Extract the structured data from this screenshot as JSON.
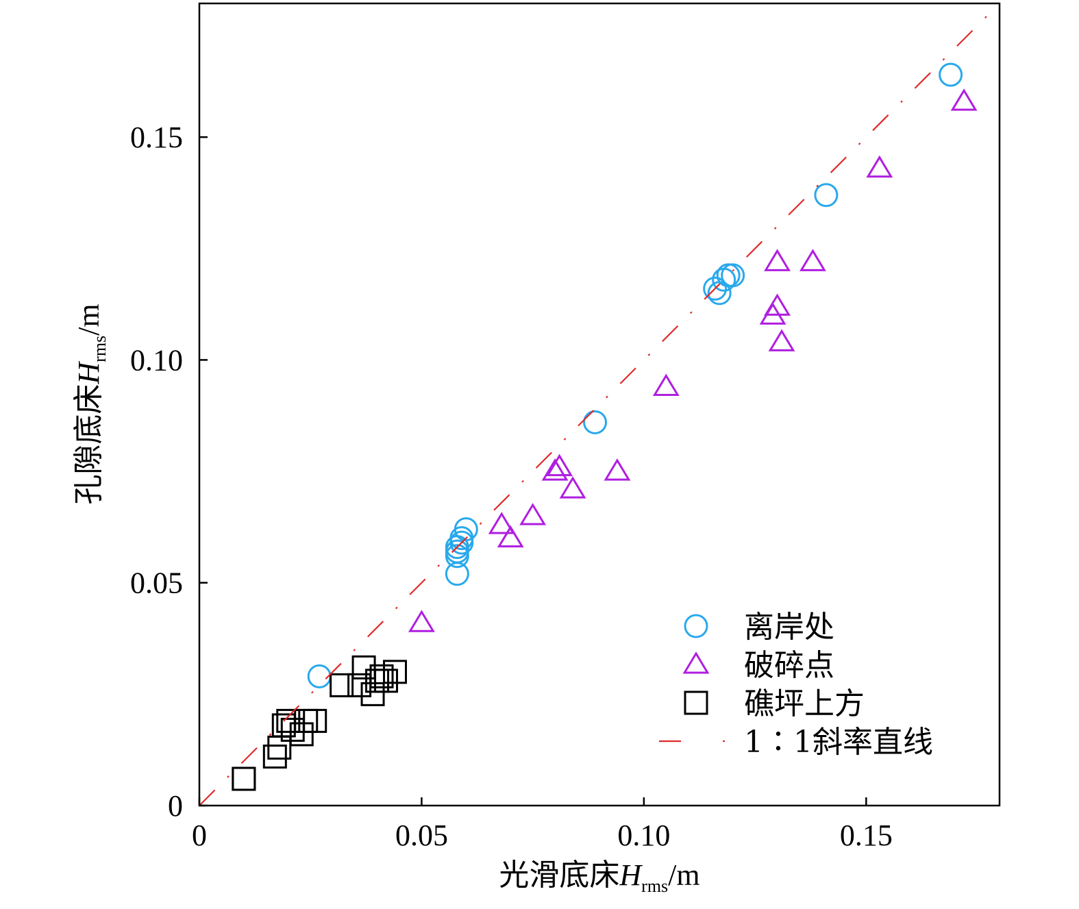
{
  "chart_data": {
    "type": "scatter",
    "xlabel": {
      "main": "光滑底床",
      "var": "H",
      "sub": "rms",
      "unit": "/m"
    },
    "ylabel": {
      "main": "孔隙底床",
      "var": "H",
      "sub": "rms",
      "unit": "/m"
    },
    "xlim": [
      0,
      0.18
    ],
    "ylim": [
      0,
      0.18
    ],
    "xticks": [
      {
        "value": 0,
        "label": "0"
      },
      {
        "value": 0.05,
        "label": "0.05"
      },
      {
        "value": 0.1,
        "label": "0.10"
      },
      {
        "value": 0.15,
        "label": "0.15"
      }
    ],
    "yticks": [
      {
        "value": 0,
        "label": "0"
      },
      {
        "value": 0.05,
        "label": "0.05"
      },
      {
        "value": 0.1,
        "label": "0.10"
      },
      {
        "value": 0.15,
        "label": "0.15"
      }
    ],
    "grid": false,
    "legend_position": "bottom-right",
    "series": [
      {
        "name": "离岸处",
        "marker": "circle",
        "color": "#29a8ec",
        "points": [
          [
            0.027,
            0.029
          ],
          [
            0.058,
            0.052
          ],
          [
            0.058,
            0.056
          ],
          [
            0.058,
            0.057
          ],
          [
            0.058,
            0.058
          ],
          [
            0.059,
            0.059
          ],
          [
            0.059,
            0.06
          ],
          [
            0.06,
            0.062
          ],
          [
            0.089,
            0.086
          ],
          [
            0.116,
            0.116
          ],
          [
            0.117,
            0.115
          ],
          [
            0.118,
            0.118
          ],
          [
            0.119,
            0.119
          ],
          [
            0.12,
            0.119
          ],
          [
            0.141,
            0.137
          ],
          [
            0.169,
            0.164
          ]
        ]
      },
      {
        "name": "破碎点",
        "marker": "triangle",
        "color": "#b01ee0",
        "points": [
          [
            0.05,
            0.041
          ],
          [
            0.068,
            0.063
          ],
          [
            0.07,
            0.06
          ],
          [
            0.075,
            0.065
          ],
          [
            0.08,
            0.075
          ],
          [
            0.081,
            0.076
          ],
          [
            0.084,
            0.071
          ],
          [
            0.094,
            0.075
          ],
          [
            0.105,
            0.094
          ],
          [
            0.129,
            0.11
          ],
          [
            0.13,
            0.112
          ],
          [
            0.13,
            0.122
          ],
          [
            0.131,
            0.104
          ],
          [
            0.138,
            0.122
          ],
          [
            0.153,
            0.143
          ],
          [
            0.172,
            0.158
          ]
        ]
      },
      {
        "name": "礁坪上方",
        "marker": "square",
        "color": "#000000",
        "points": [
          [
            0.01,
            0.006
          ],
          [
            0.01,
            0.006
          ],
          [
            0.017,
            0.011
          ],
          [
            0.018,
            0.013
          ],
          [
            0.019,
            0.018
          ],
          [
            0.02,
            0.019
          ],
          [
            0.021,
            0.017
          ],
          [
            0.023,
            0.016
          ],
          [
            0.024,
            0.019
          ],
          [
            0.026,
            0.019
          ],
          [
            0.032,
            0.027
          ],
          [
            0.036,
            0.027
          ],
          [
            0.037,
            0.031
          ],
          [
            0.039,
            0.025
          ],
          [
            0.04,
            0.028
          ],
          [
            0.041,
            0.029
          ],
          [
            0.042,
            0.028
          ],
          [
            0.044,
            0.03
          ]
        ]
      },
      {
        "name": "1∶1斜率直线",
        "marker": "dash-dot-line",
        "color": "#e02a2a",
        "points": [
          [
            0,
            0
          ],
          [
            0.18,
            0.18
          ]
        ]
      }
    ]
  }
}
